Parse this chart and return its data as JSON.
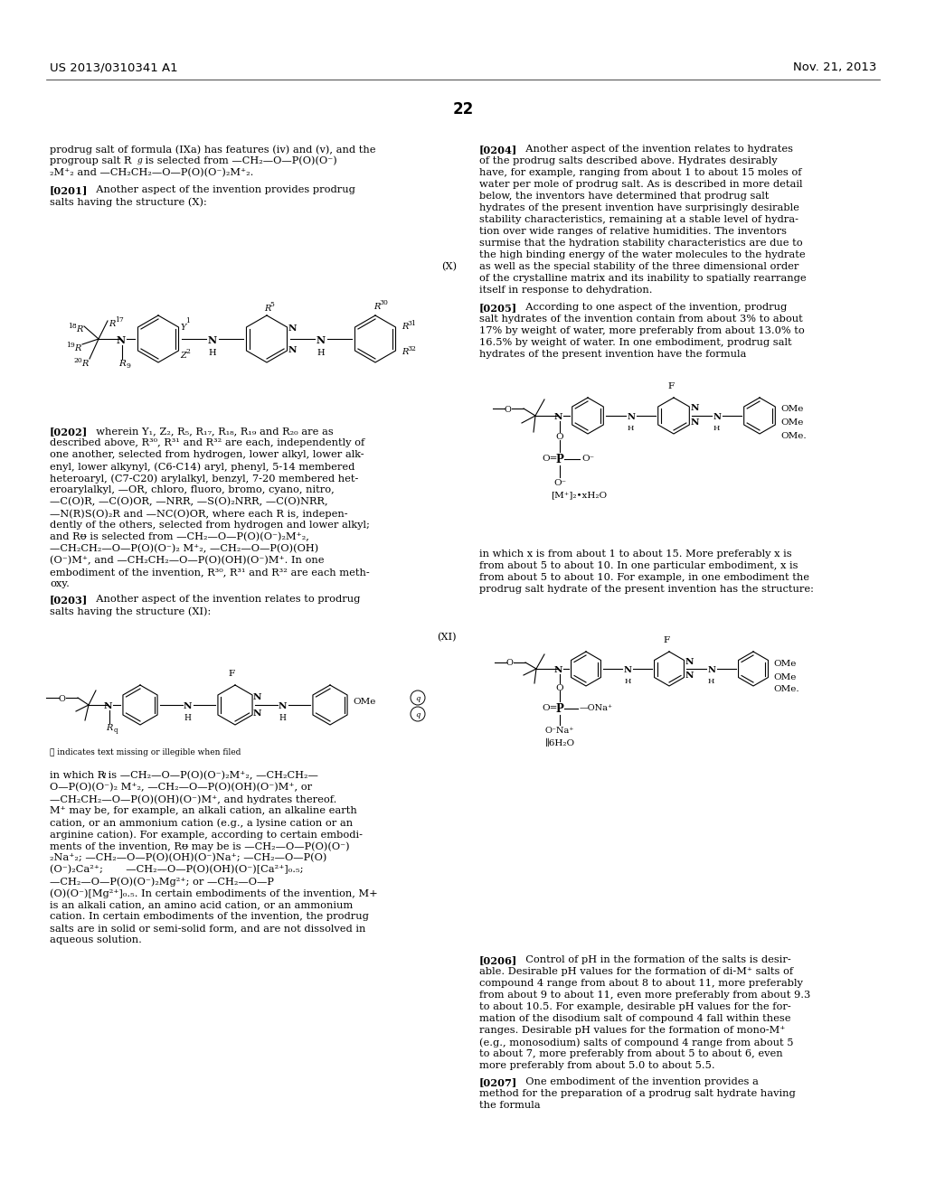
{
  "title_left": "US 2013/0310341 A1",
  "title_right": "Nov. 21, 2013",
  "page_number": "22",
  "background_color": "#ffffff",
  "text_color": "#000000"
}
